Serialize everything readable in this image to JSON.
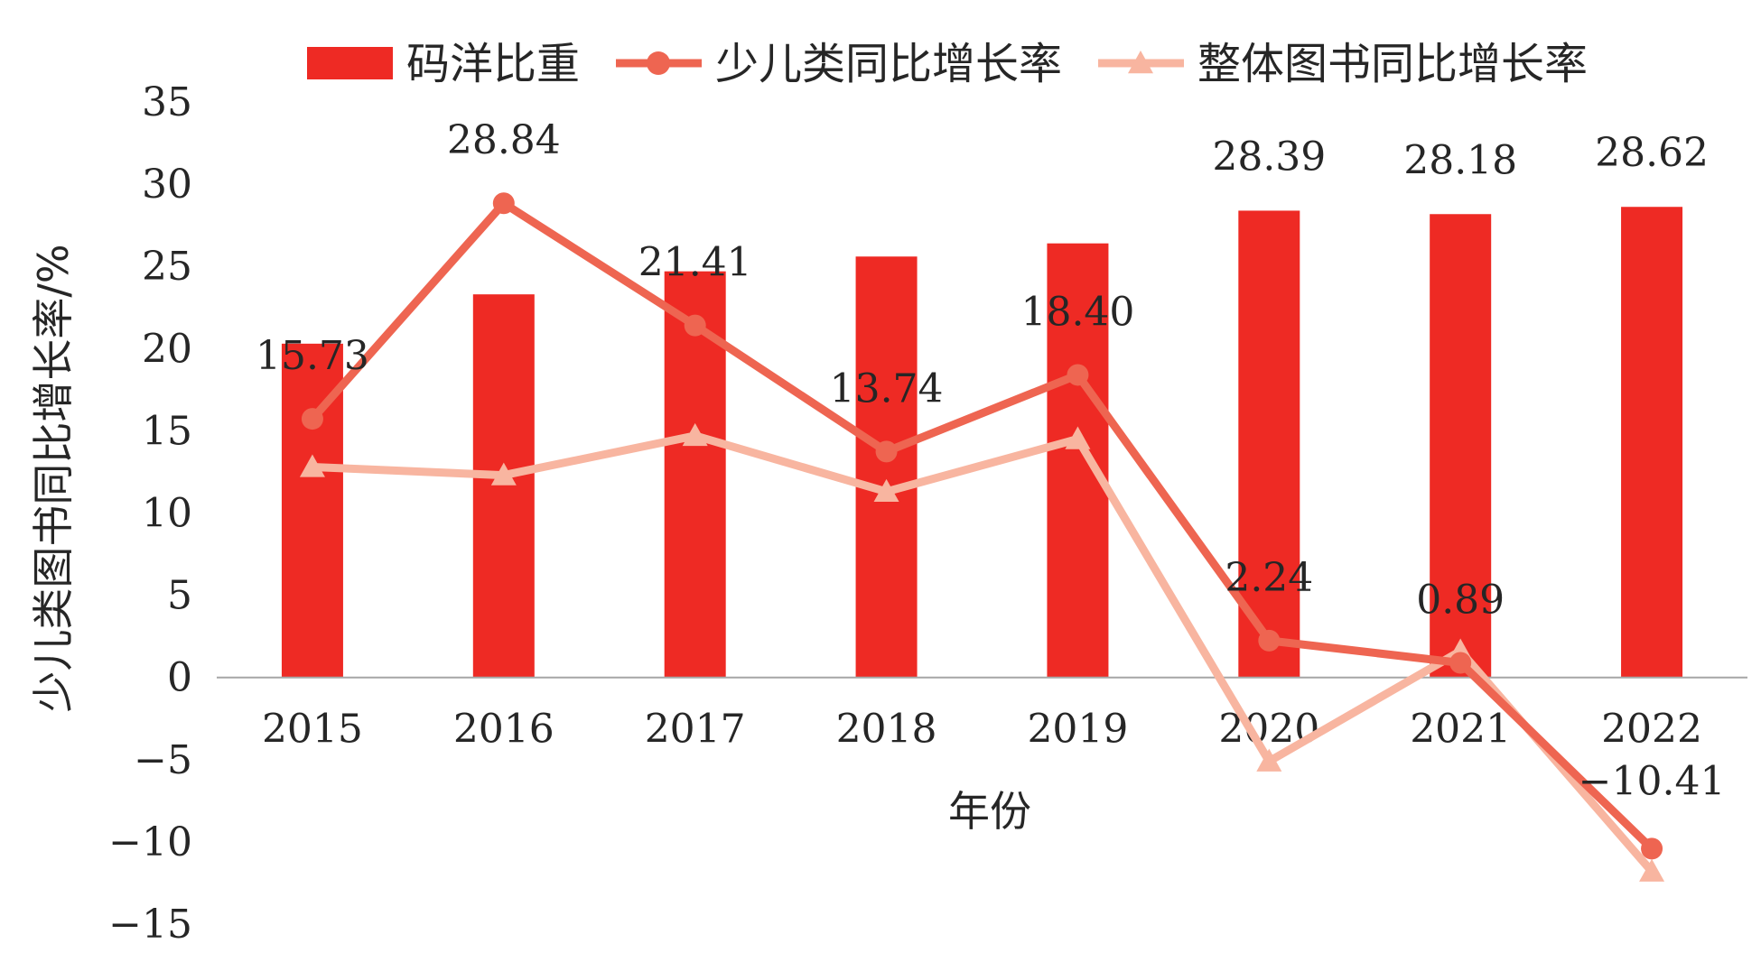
{
  "chart_data": {
    "type": "bar",
    "categories": [
      "2015",
      "2016",
      "2017",
      "2018",
      "2019",
      "2020",
      "2021",
      "2022"
    ],
    "xlabel": "年份",
    "ylabel": "少儿类图书同比增长率/%",
    "ylim": [
      -15,
      35
    ],
    "yticks": [
      "35",
      "30",
      "25",
      "20",
      "15",
      "10",
      "5",
      "0",
      "-5",
      "-10",
      "-15"
    ],
    "legend_position": "top",
    "grid": false,
    "series": [
      {
        "name": "码洋比重",
        "type": "bar",
        "color": "#EE2A24",
        "values": [
          20.3,
          23.3,
          24.7,
          25.6,
          26.4,
          28.39,
          28.18,
          28.62
        ],
        "labels": [
          "",
          "",
          "",
          "",
          "",
          "28.39",
          "28.18",
          "28.62"
        ]
      },
      {
        "name": "少儿类同比增长率",
        "type": "line",
        "marker": "circle",
        "color": "#EE6551",
        "values": [
          15.73,
          28.84,
          21.41,
          13.74,
          18.4,
          2.24,
          0.89,
          -10.41
        ],
        "labels": [
          "15.73",
          "28.84",
          "21.41",
          "13.74",
          "18.40",
          "2.24",
          "0.89",
          "−10.41"
        ]
      },
      {
        "name": "整体图书同比增长率",
        "type": "line",
        "marker": "triangle",
        "color": "#F8B5A0",
        "values": [
          12.8,
          12.3,
          14.7,
          11.3,
          14.5,
          -5.1,
          1.6,
          -11.8
        ],
        "labels": []
      }
    ]
  }
}
